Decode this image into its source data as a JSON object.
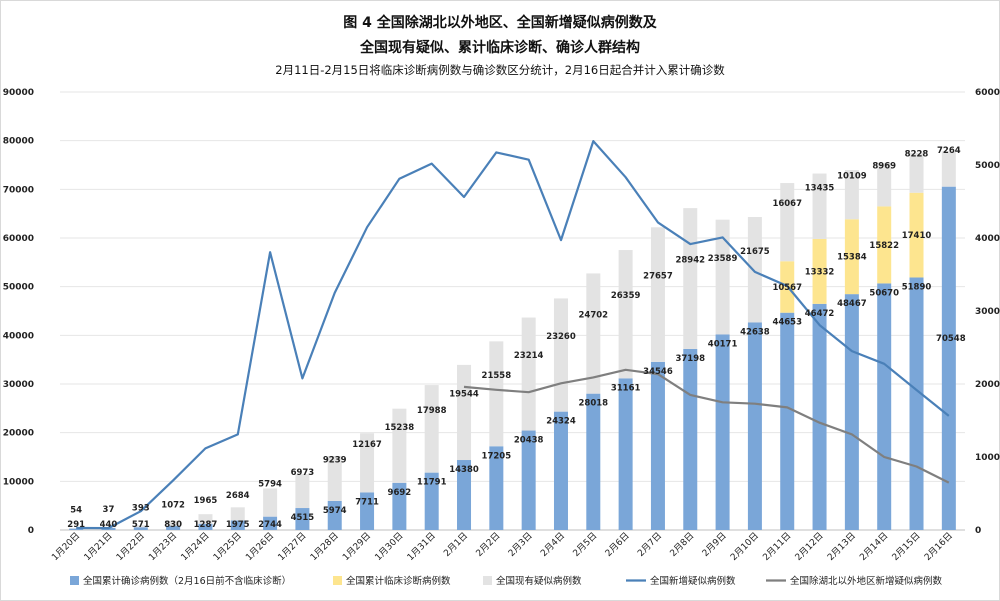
{
  "chart_data": {
    "type": "bar",
    "title": "图 4 全国除湖北以外地区、全国新增疑似病例数及",
    "title_line2": "全国现有疑似、累计临床诊断、确诊人群结构",
    "subtitle": "2月11日-2月15日将临床诊断病例数与确诊数区分统计，2月16日起合并计入累计确诊数",
    "categories": [
      "1月20日",
      "1月21日",
      "1月22日",
      "1月23日",
      "1月24日",
      "1月25日",
      "1月26日",
      "1月27日",
      "1月28日",
      "1月29日",
      "1月30日",
      "1月31日",
      "2月1日",
      "2月2日",
      "2月3日",
      "2月4日",
      "2月5日",
      "2月6日",
      "2月7日",
      "2月8日",
      "2月9日",
      "2月10日",
      "2月11日",
      "2月12日",
      "2月13日",
      "2月14日",
      "2月15日",
      "2月16日"
    ],
    "y_left": {
      "ylim": [
        0,
        90000
      ],
      "ticks": [
        "0",
        "10000",
        "20000",
        "30000",
        "40000",
        "50000",
        "60000",
        "70000",
        "80000",
        "90000"
      ]
    },
    "y_right": {
      "ylim": [
        0,
        6000
      ],
      "ticks": [
        "0",
        "1000",
        "2000",
        "3000",
        "4000",
        "5000",
        "6000"
      ]
    },
    "grid": true,
    "legend_position": "bottom",
    "series": [
      {
        "name": "全国累计确诊病例数（2月16日前不含临床诊断）",
        "kind": "bar",
        "axis": "left",
        "color": "#7aa6d8",
        "values": [
          291,
          440,
          571,
          830,
          1287,
          1975,
          2744,
          4515,
          5974,
          7711,
          9692,
          11791,
          14380,
          17205,
          20438,
          24324,
          28018,
          31161,
          34546,
          37198,
          40171,
          42638,
          44653,
          46472,
          48467,
          50670,
          51890,
          70548
        ],
        "labels": [
          "291",
          "440",
          "571",
          "830",
          "1287",
          "1975",
          "2744",
          "4515",
          "5974",
          "7711",
          "9692",
          "11791",
          "14380",
          "17205",
          "20438",
          "24324",
          "28018",
          "31161",
          "34546",
          "37198",
          "40171",
          "42638",
          "44653",
          "46472",
          "48467",
          "50670",
          "51890",
          "70548"
        ]
      },
      {
        "name": "全国累计临床诊断病例数",
        "kind": "bar",
        "axis": "left",
        "color": "#fde58f",
        "values": [
          null,
          null,
          null,
          null,
          null,
          null,
          null,
          null,
          null,
          null,
          null,
          null,
          null,
          null,
          null,
          null,
          null,
          null,
          null,
          null,
          null,
          null,
          10567,
          13332,
          15384,
          15822,
          17410,
          null
        ],
        "labels": [
          "",
          "",
          "",
          "",
          "",
          "",
          "",
          "",
          "",
          "",
          "",
          "",
          "",
          "",
          "",
          "",
          "",
          "",
          "",
          "",
          "",
          "",
          "10567",
          "13332",
          "15384",
          "15822",
          "17410",
          ""
        ]
      },
      {
        "name": "全国现有疑似病例数",
        "kind": "bar",
        "axis": "left",
        "color": "#e3e3e3",
        "values": [
          54,
          37,
          393,
          1072,
          1965,
          2684,
          5794,
          6973,
          9239,
          12167,
          15238,
          17988,
          19544,
          21558,
          23214,
          23260,
          24702,
          26359,
          27657,
          28942,
          23589,
          21675,
          16067,
          13435,
          10109,
          8969,
          8228,
          7264
        ],
        "labels": [
          "54",
          "37",
          "393",
          "1072",
          "1965",
          "2684",
          "5794",
          "6973",
          "9239",
          "12167",
          "15238",
          "17988",
          "19544",
          "21558",
          "23214",
          "23260",
          "24702",
          "26359",
          "27657",
          "28942",
          "23589",
          "21675",
          "16067",
          "13435",
          "10109",
          "8969",
          "8228",
          "7264"
        ]
      },
      {
        "name": "全国新增疑似病例数",
        "kind": "line",
        "axis": "right",
        "color": "#4a80b8",
        "values": [
          27,
          26,
          257,
          680,
          1118,
          1309,
          3806,
          2077,
          3248,
          4148,
          4812,
          5019,
          4562,
          5173,
          5072,
          3971,
          5328,
          4833,
          4214,
          3916,
          4008,
          3536,
          3342,
          2807,
          2450,
          2277,
          1918,
          1563
        ]
      },
      {
        "name": "全国除湖北以外地区新增疑似病例数",
        "kind": "line",
        "axis": "right",
        "color": "#7f7f7f",
        "values": [
          null,
          null,
          null,
          null,
          null,
          null,
          null,
          null,
          null,
          null,
          null,
          null,
          1960,
          1920,
          1888,
          2010,
          2090,
          2195,
          2135,
          1850,
          1750,
          1730,
          1680,
          1470,
          1310,
          1000,
          870,
          650
        ]
      }
    ]
  }
}
